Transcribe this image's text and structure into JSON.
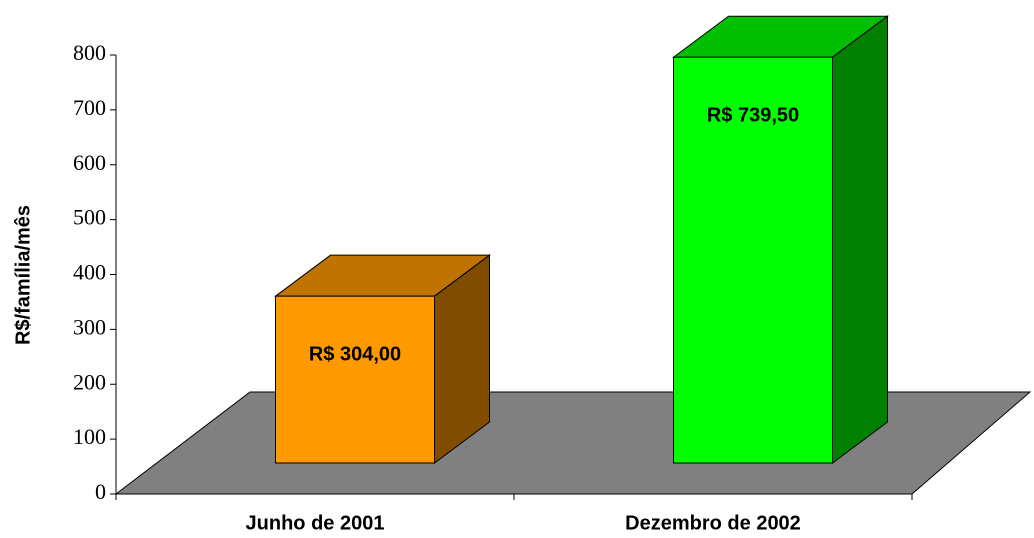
{
  "chart_data": {
    "type": "bar3d",
    "y_label": "R$/família/mês",
    "categories": [
      "Junho de 2001",
      "Dezembro de 2002"
    ],
    "values": [
      304,
      739.5
    ],
    "value_labels": [
      "R$ 304,00",
      "R$ 739,50"
    ],
    "colors": [
      "#ff9900",
      "#00ff00"
    ],
    "floor_color": "#808080",
    "ylim": [
      0,
      800
    ],
    "yticks": [
      0,
      100,
      200,
      300,
      400,
      500,
      600,
      700,
      800
    ]
  }
}
